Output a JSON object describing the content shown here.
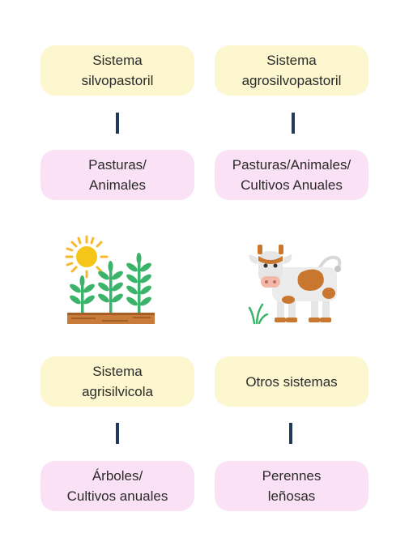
{
  "boxes": {
    "silvopastoril": "Sistema\nsilvopastoril",
    "agrosilvopastoril": "Sistema\nagrosilvopastoril",
    "pasturas_animales": "Pasturas/\nAnimales",
    "pasturas_animales_cultivos": "Pasturas/Animales/\nCultivos Anuales",
    "agrisilvicola": "Sistema\nagrisilvicola",
    "otros_sistemas": "Otros sistemas",
    "arboles_cultivos": "Árboles/\nCultivos anuales",
    "perennes_lenosas": "Perennes\nleñosas"
  },
  "icons": [
    "crops-sun-icon",
    "cow-icon"
  ],
  "colors": {
    "system_box": "#fdf7cf",
    "component_box": "#fbe1f6",
    "connector": "#22395a",
    "text": "#2a2a2a"
  }
}
